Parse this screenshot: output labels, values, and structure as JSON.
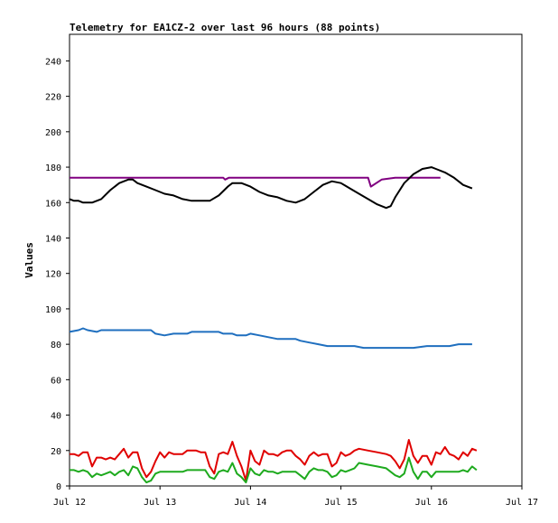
{
  "chart_data": {
    "type": "line",
    "title": "Telemetry for EA1CZ-2 over last 96 hours (88 points)",
    "xlabel": "",
    "ylabel": "Values",
    "ylim": [
      0,
      255
    ],
    "yticks": [
      0,
      20,
      40,
      60,
      80,
      100,
      120,
      140,
      160,
      180,
      200,
      220,
      240
    ],
    "xlim": [
      0,
      5
    ],
    "xticks": [
      {
        "value": 0,
        "label": "Jul 12"
      },
      {
        "value": 1,
        "label": "Jul 13"
      },
      {
        "value": 2,
        "label": "Jul 14"
      },
      {
        "value": 3,
        "label": "Jul 15"
      },
      {
        "value": 4,
        "label": "Jul 16"
      },
      {
        "value": 5,
        "label": "Jul 17"
      }
    ],
    "grid": false,
    "legend": "none",
    "series": [
      {
        "color": "#800080",
        "points": [
          [
            0,
            174
          ],
          [
            0.5,
            174
          ],
          [
            1,
            174
          ],
          [
            1.5,
            174
          ],
          [
            1.7,
            174
          ],
          [
            1.72,
            173
          ],
          [
            1.76,
            174
          ],
          [
            2,
            174
          ],
          [
            2.5,
            174
          ],
          [
            3,
            174
          ],
          [
            3.3,
            174
          ],
          [
            3.33,
            169
          ],
          [
            3.45,
            173
          ],
          [
            3.6,
            174
          ],
          [
            4,
            174
          ],
          [
            4.1,
            174
          ]
        ]
      },
      {
        "color": "#000000",
        "points": [
          [
            0,
            162
          ],
          [
            0.05,
            161
          ],
          [
            0.1,
            161
          ],
          [
            0.15,
            160
          ],
          [
            0.25,
            160
          ],
          [
            0.35,
            162
          ],
          [
            0.45,
            167
          ],
          [
            0.55,
            171
          ],
          [
            0.65,
            173
          ],
          [
            0.7,
            173
          ],
          [
            0.75,
            171
          ],
          [
            0.85,
            169
          ],
          [
            0.95,
            167
          ],
          [
            1.05,
            165
          ],
          [
            1.15,
            164
          ],
          [
            1.25,
            162
          ],
          [
            1.35,
            161
          ],
          [
            1.45,
            161
          ],
          [
            1.55,
            161
          ],
          [
            1.65,
            164
          ],
          [
            1.75,
            169
          ],
          [
            1.8,
            171
          ],
          [
            1.9,
            171
          ],
          [
            2,
            169
          ],
          [
            2.1,
            166
          ],
          [
            2.2,
            164
          ],
          [
            2.3,
            163
          ],
          [
            2.4,
            161
          ],
          [
            2.5,
            160
          ],
          [
            2.6,
            162
          ],
          [
            2.7,
            166
          ],
          [
            2.8,
            170
          ],
          [
            2.9,
            172
          ],
          [
            3,
            171
          ],
          [
            3.1,
            168
          ],
          [
            3.2,
            165
          ],
          [
            3.3,
            162
          ],
          [
            3.4,
            159
          ],
          [
            3.5,
            157
          ],
          [
            3.55,
            158
          ],
          [
            3.6,
            163
          ],
          [
            3.7,
            171
          ],
          [
            3.8,
            176
          ],
          [
            3.9,
            179
          ],
          [
            4,
            180
          ],
          [
            4.05,
            179
          ],
          [
            4.15,
            177
          ],
          [
            4.25,
            174
          ],
          [
            4.35,
            170
          ],
          [
            4.45,
            168
          ]
        ]
      },
      {
        "color": "#1f6fbf",
        "points": [
          [
            0,
            87
          ],
          [
            0.1,
            88
          ],
          [
            0.15,
            89
          ],
          [
            0.2,
            88
          ],
          [
            0.3,
            87
          ],
          [
            0.35,
            88
          ],
          [
            0.5,
            88
          ],
          [
            0.75,
            88
          ],
          [
            0.9,
            88
          ],
          [
            0.95,
            86
          ],
          [
            1.05,
            85
          ],
          [
            1.15,
            86
          ],
          [
            1.3,
            86
          ],
          [
            1.35,
            87
          ],
          [
            1.5,
            87
          ],
          [
            1.65,
            87
          ],
          [
            1.7,
            86
          ],
          [
            1.8,
            86
          ],
          [
            1.85,
            85
          ],
          [
            1.95,
            85
          ],
          [
            2,
            86
          ],
          [
            2.1,
            85
          ],
          [
            2.2,
            84
          ],
          [
            2.3,
            83
          ],
          [
            2.4,
            83
          ],
          [
            2.5,
            83
          ],
          [
            2.55,
            82
          ],
          [
            2.65,
            81
          ],
          [
            2.75,
            80
          ],
          [
            2.85,
            79
          ],
          [
            3,
            79
          ],
          [
            3.15,
            79
          ],
          [
            3.25,
            78
          ],
          [
            3.4,
            78
          ],
          [
            3.6,
            78
          ],
          [
            3.8,
            78
          ],
          [
            3.95,
            79
          ],
          [
            4.05,
            79
          ],
          [
            4.2,
            79
          ],
          [
            4.3,
            80
          ],
          [
            4.45,
            80
          ]
        ]
      },
      {
        "color": "#e00000",
        "points": [
          [
            0,
            18
          ],
          [
            0.05,
            18
          ],
          [
            0.1,
            17
          ],
          [
            0.15,
            19
          ],
          [
            0.2,
            19
          ],
          [
            0.25,
            11
          ],
          [
            0.3,
            16
          ],
          [
            0.35,
            16
          ],
          [
            0.4,
            15
          ],
          [
            0.45,
            16
          ],
          [
            0.5,
            15
          ],
          [
            0.55,
            18
          ],
          [
            0.6,
            21
          ],
          [
            0.65,
            16
          ],
          [
            0.7,
            19
          ],
          [
            0.75,
            19
          ],
          [
            0.8,
            10
          ],
          [
            0.85,
            5
          ],
          [
            0.9,
            8
          ],
          [
            0.95,
            14
          ],
          [
            1,
            19
          ],
          [
            1.05,
            16
          ],
          [
            1.1,
            19
          ],
          [
            1.15,
            18
          ],
          [
            1.2,
            18
          ],
          [
            1.25,
            18
          ],
          [
            1.3,
            20
          ],
          [
            1.35,
            20
          ],
          [
            1.4,
            20
          ],
          [
            1.45,
            19
          ],
          [
            1.5,
            19
          ],
          [
            1.55,
            11
          ],
          [
            1.6,
            7
          ],
          [
            1.65,
            18
          ],
          [
            1.7,
            19
          ],
          [
            1.75,
            18
          ],
          [
            1.8,
            25
          ],
          [
            1.85,
            17
          ],
          [
            1.9,
            11
          ],
          [
            1.95,
            3
          ],
          [
            2,
            20
          ],
          [
            2.05,
            14
          ],
          [
            2.1,
            12
          ],
          [
            2.15,
            20
          ],
          [
            2.2,
            18
          ],
          [
            2.25,
            18
          ],
          [
            2.3,
            17
          ],
          [
            2.35,
            19
          ],
          [
            2.4,
            20
          ],
          [
            2.45,
            20
          ],
          [
            2.5,
            17
          ],
          [
            2.55,
            15
          ],
          [
            2.6,
            12
          ],
          [
            2.65,
            17
          ],
          [
            2.7,
            19
          ],
          [
            2.75,
            17
          ],
          [
            2.8,
            18
          ],
          [
            2.85,
            18
          ],
          [
            2.9,
            11
          ],
          [
            2.95,
            13
          ],
          [
            3,
            19
          ],
          [
            3.05,
            17
          ],
          [
            3.1,
            18
          ],
          [
            3.15,
            20
          ],
          [
            3.2,
            21
          ],
          [
            3.3,
            20
          ],
          [
            3.4,
            19
          ],
          [
            3.5,
            18
          ],
          [
            3.55,
            17
          ],
          [
            3.6,
            14
          ],
          [
            3.65,
            10
          ],
          [
            3.7,
            15
          ],
          [
            3.75,
            26
          ],
          [
            3.8,
            17
          ],
          [
            3.85,
            13
          ],
          [
            3.9,
            17
          ],
          [
            3.95,
            17
          ],
          [
            4,
            12
          ],
          [
            4.05,
            19
          ],
          [
            4.1,
            18
          ],
          [
            4.15,
            22
          ],
          [
            4.2,
            18
          ],
          [
            4.25,
            17
          ],
          [
            4.3,
            15
          ],
          [
            4.35,
            19
          ],
          [
            4.4,
            17
          ],
          [
            4.45,
            21
          ],
          [
            4.5,
            20
          ]
        ]
      },
      {
        "color": "#1eaa1e",
        "points": [
          [
            0,
            9
          ],
          [
            0.05,
            9
          ],
          [
            0.1,
            8
          ],
          [
            0.15,
            9
          ],
          [
            0.2,
            8
          ],
          [
            0.25,
            5
          ],
          [
            0.3,
            7
          ],
          [
            0.35,
            6
          ],
          [
            0.4,
            7
          ],
          [
            0.45,
            8
          ],
          [
            0.5,
            6
          ],
          [
            0.55,
            8
          ],
          [
            0.6,
            9
          ],
          [
            0.65,
            6
          ],
          [
            0.7,
            11
          ],
          [
            0.75,
            10
          ],
          [
            0.8,
            5
          ],
          [
            0.85,
            2
          ],
          [
            0.9,
            3
          ],
          [
            0.95,
            7
          ],
          [
            1,
            8
          ],
          [
            1.05,
            8
          ],
          [
            1.1,
            8
          ],
          [
            1.15,
            8
          ],
          [
            1.2,
            8
          ],
          [
            1.25,
            8
          ],
          [
            1.3,
            9
          ],
          [
            1.35,
            9
          ],
          [
            1.4,
            9
          ],
          [
            1.45,
            9
          ],
          [
            1.5,
            9
          ],
          [
            1.55,
            5
          ],
          [
            1.6,
            4
          ],
          [
            1.65,
            8
          ],
          [
            1.7,
            9
          ],
          [
            1.75,
            8
          ],
          [
            1.8,
            13
          ],
          [
            1.85,
            7
          ],
          [
            1.9,
            5
          ],
          [
            1.95,
            2
          ],
          [
            2,
            10
          ],
          [
            2.05,
            7
          ],
          [
            2.1,
            6
          ],
          [
            2.15,
            9
          ],
          [
            2.2,
            8
          ],
          [
            2.25,
            8
          ],
          [
            2.3,
            7
          ],
          [
            2.35,
            8
          ],
          [
            2.4,
            8
          ],
          [
            2.45,
            8
          ],
          [
            2.5,
            8
          ],
          [
            2.55,
            6
          ],
          [
            2.6,
            4
          ],
          [
            2.65,
            8
          ],
          [
            2.7,
            10
          ],
          [
            2.75,
            9
          ],
          [
            2.8,
            9
          ],
          [
            2.85,
            8
          ],
          [
            2.9,
            5
          ],
          [
            2.95,
            6
          ],
          [
            3,
            9
          ],
          [
            3.05,
            8
          ],
          [
            3.1,
            9
          ],
          [
            3.15,
            10
          ],
          [
            3.2,
            13
          ],
          [
            3.3,
            12
          ],
          [
            3.4,
            11
          ],
          [
            3.5,
            10
          ],
          [
            3.55,
            8
          ],
          [
            3.6,
            6
          ],
          [
            3.65,
            5
          ],
          [
            3.7,
            7
          ],
          [
            3.75,
            16
          ],
          [
            3.8,
            8
          ],
          [
            3.85,
            4
          ],
          [
            3.9,
            8
          ],
          [
            3.95,
            8
          ],
          [
            4,
            5
          ],
          [
            4.05,
            8
          ],
          [
            4.1,
            8
          ],
          [
            4.2,
            8
          ],
          [
            4.3,
            8
          ],
          [
            4.35,
            9
          ],
          [
            4.4,
            8
          ],
          [
            4.45,
            11
          ],
          [
            4.5,
            9
          ]
        ]
      }
    ]
  }
}
